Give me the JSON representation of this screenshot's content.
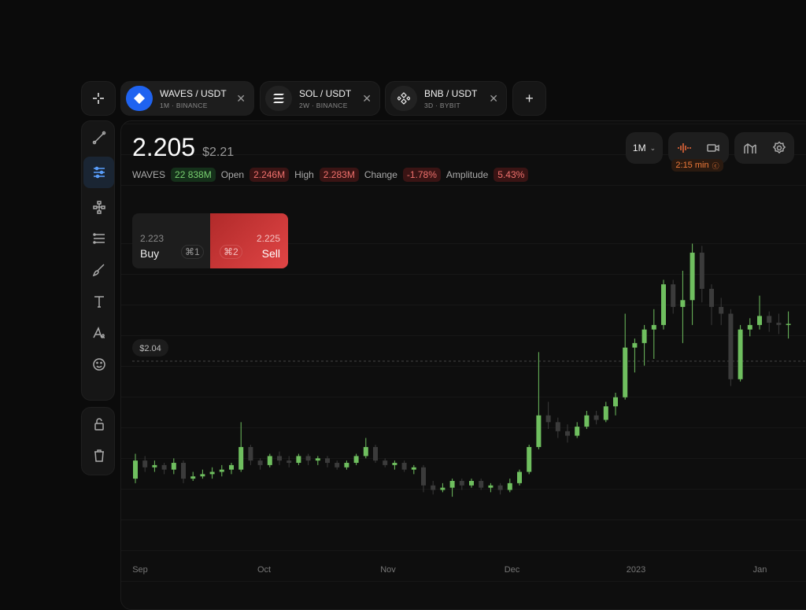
{
  "tabs": [
    {
      "symbol": "WAVES / USDT",
      "detail": "1M · BINANCE"
    },
    {
      "symbol": "SOL / USDT",
      "detail": "2W · BINANCE"
    },
    {
      "symbol": "BNB / USDT",
      "detail": "3D · BYBIT"
    }
  ],
  "header": {
    "price": "2.205",
    "usd": "$2.21",
    "symbol": "WAVES",
    "volume": "22 838M",
    "stats": [
      {
        "label": "Open",
        "value": "2.246M"
      },
      {
        "label": "High",
        "value": "2.283M"
      },
      {
        "label": "Change",
        "value": "-1.78%"
      },
      {
        "label": "Amplitude",
        "value": "5.43%"
      }
    ]
  },
  "controls": {
    "interval": "1M",
    "timer": "2:15 min"
  },
  "order": {
    "buy": {
      "price": "2.223",
      "label": "Buy",
      "shortcut": "⌘1"
    },
    "sell": {
      "price": "2.225",
      "label": "Sell",
      "shortcut": "⌘2"
    }
  },
  "chart_data": {
    "type": "candlestick",
    "x_labels": [
      "Sep",
      "Oct",
      "Nov",
      "Dec",
      "2023",
      "Jan"
    ],
    "ylim": [
      1.2,
      2.75
    ],
    "up_color": "#6fbf5f",
    "down_color": "#3b3b3b",
    "price_line": {
      "value": 2.04,
      "label": "$2.04"
    },
    "candles": [
      [
        1.52,
        1.63,
        1.5,
        1.6
      ],
      [
        1.6,
        1.62,
        1.55,
        1.57
      ],
      [
        1.57,
        1.6,
        1.55,
        1.58
      ],
      [
        1.58,
        1.59,
        1.54,
        1.56
      ],
      [
        1.56,
        1.61,
        1.54,
        1.59
      ],
      [
        1.59,
        1.6,
        1.5,
        1.52
      ],
      [
        1.52,
        1.55,
        1.51,
        1.53
      ],
      [
        1.53,
        1.56,
        1.52,
        1.54
      ],
      [
        1.54,
        1.57,
        1.52,
        1.55
      ],
      [
        1.55,
        1.58,
        1.53,
        1.56
      ],
      [
        1.56,
        1.59,
        1.54,
        1.58
      ],
      [
        1.56,
        1.77,
        1.55,
        1.66
      ],
      [
        1.66,
        1.67,
        1.58,
        1.6
      ],
      [
        1.6,
        1.61,
        1.56,
        1.58
      ],
      [
        1.58,
        1.63,
        1.57,
        1.62
      ],
      [
        1.62,
        1.64,
        1.58,
        1.6
      ],
      [
        1.6,
        1.62,
        1.57,
        1.59
      ],
      [
        1.59,
        1.63,
        1.58,
        1.62
      ],
      [
        1.62,
        1.63,
        1.58,
        1.6
      ],
      [
        1.6,
        1.62,
        1.58,
        1.61
      ],
      [
        1.61,
        1.62,
        1.57,
        1.59
      ],
      [
        1.59,
        1.6,
        1.56,
        1.57
      ],
      [
        1.57,
        1.6,
        1.56,
        1.59
      ],
      [
        1.59,
        1.63,
        1.58,
        1.62
      ],
      [
        1.62,
        1.7,
        1.61,
        1.66
      ],
      [
        1.66,
        1.67,
        1.59,
        1.6
      ],
      [
        1.6,
        1.61,
        1.57,
        1.58
      ],
      [
        1.58,
        1.6,
        1.56,
        1.59
      ],
      [
        1.59,
        1.6,
        1.55,
        1.56
      ],
      [
        1.56,
        1.58,
        1.54,
        1.57
      ],
      [
        1.57,
        1.58,
        1.46,
        1.49
      ],
      [
        1.49,
        1.51,
        1.45,
        1.47
      ],
      [
        1.47,
        1.5,
        1.46,
        1.48
      ],
      [
        1.48,
        1.52,
        1.44,
        1.51
      ],
      [
        1.51,
        1.52,
        1.47,
        1.49
      ],
      [
        1.49,
        1.52,
        1.48,
        1.51
      ],
      [
        1.51,
        1.52,
        1.47,
        1.48
      ],
      [
        1.48,
        1.5,
        1.46,
        1.49
      ],
      [
        1.49,
        1.5,
        1.45,
        1.47
      ],
      [
        1.47,
        1.52,
        1.46,
        1.5
      ],
      [
        1.5,
        1.56,
        1.49,
        1.55
      ],
      [
        1.55,
        1.67,
        1.54,
        1.66
      ],
      [
        1.66,
        2.08,
        1.65,
        1.8
      ],
      [
        1.8,
        1.86,
        1.74,
        1.77
      ],
      [
        1.77,
        1.79,
        1.7,
        1.73
      ],
      [
        1.73,
        1.76,
        1.68,
        1.71
      ],
      [
        1.71,
        1.77,
        1.7,
        1.75
      ],
      [
        1.75,
        1.82,
        1.74,
        1.8
      ],
      [
        1.8,
        1.82,
        1.76,
        1.78
      ],
      [
        1.78,
        1.86,
        1.77,
        1.84
      ],
      [
        1.84,
        1.9,
        1.8,
        1.88
      ],
      [
        1.88,
        2.25,
        1.87,
        2.1
      ],
      [
        2.1,
        2.14,
        1.99,
        2.12
      ],
      [
        2.12,
        2.2,
        2.02,
        2.18
      ],
      [
        2.18,
        2.27,
        2.05,
        2.2
      ],
      [
        2.2,
        2.4,
        2.18,
        2.38
      ],
      [
        2.38,
        2.4,
        2.25,
        2.28
      ],
      [
        2.28,
        2.44,
        2.12,
        2.31
      ],
      [
        2.31,
        2.56,
        2.2,
        2.52
      ],
      [
        2.52,
        2.55,
        2.3,
        2.36
      ],
      [
        2.36,
        2.38,
        2.2,
        2.28
      ],
      [
        2.28,
        2.32,
        2.2,
        2.25
      ],
      [
        2.25,
        2.27,
        1.93,
        1.96
      ],
      [
        1.96,
        2.2,
        1.95,
        2.18
      ],
      [
        2.18,
        2.23,
        2.15,
        2.2
      ],
      [
        2.2,
        2.33,
        2.18,
        2.24
      ],
      [
        2.24,
        2.26,
        2.17,
        2.21
      ],
      [
        2.21,
        2.25,
        2.16,
        2.2
      ],
      [
        2.2,
        2.26,
        2.14,
        2.205
      ]
    ]
  }
}
